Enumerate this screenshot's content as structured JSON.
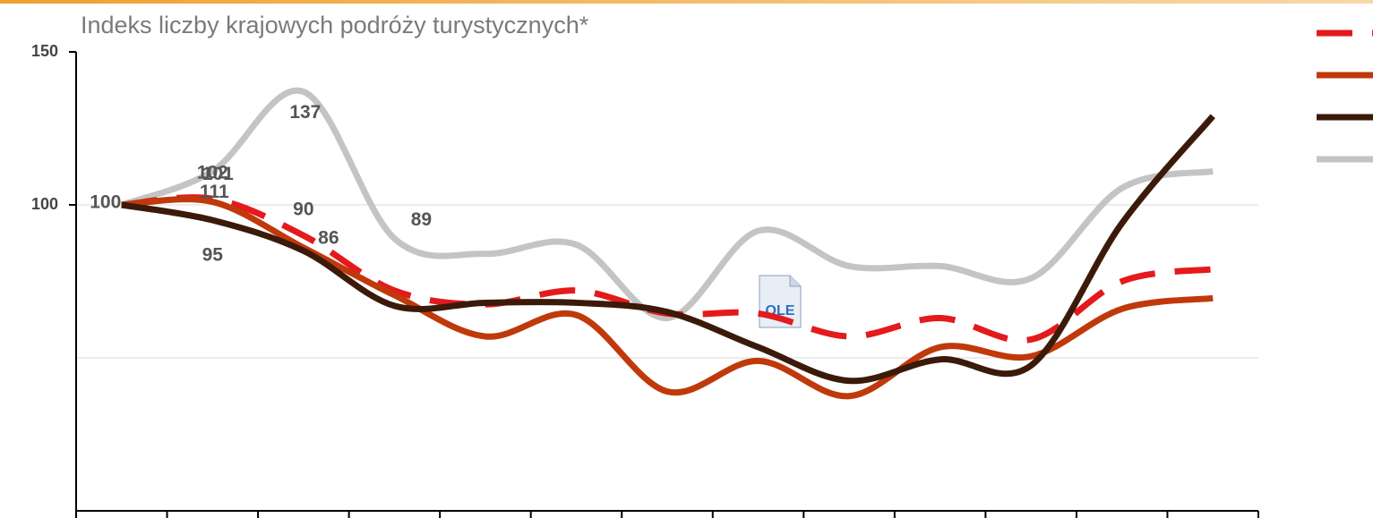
{
  "chart_data": {
    "type": "line",
    "title": "Indeks liczby krajowych podróży turystycznych*",
    "categories": [
      null,
      null,
      null,
      null,
      null,
      null,
      null,
      null,
      null,
      null,
      null,
      null,
      null
    ],
    "ylim": [
      0,
      150
    ],
    "yticks": [
      100,
      150
    ],
    "gridlines": [
      50,
      100
    ],
    "legend": "right",
    "series": [
      {
        "color": "#e41a1c",
        "dashed": true,
        "values": [
          100,
          102,
          90,
          72,
          67.5,
          72,
          64.5,
          64.5,
          57,
          63,
          56,
          75,
          79
        ],
        "value_labels": [
          null,
          "102",
          "90",
          null,
          null,
          null,
          null,
          null,
          null,
          null,
          null,
          null,
          null
        ]
      },
      {
        "color": "#c0390b",
        "values": [
          100,
          101,
          86,
          70.5,
          57,
          64,
          39,
          49,
          37.5,
          53.5,
          50.5,
          66,
          69.5
        ],
        "value_labels": [
          null,
          "101",
          "86",
          null,
          null,
          null,
          null,
          null,
          null,
          null,
          null,
          null,
          null
        ]
      },
      {
        "color": "#3b1a0a",
        "values": [
          100,
          95,
          85,
          67,
          68,
          68,
          65,
          53.5,
          42.5,
          49.5,
          47.5,
          94,
          129
        ],
        "value_labels": [
          null,
          "95",
          null,
          null,
          null,
          null,
          null,
          null,
          null,
          null,
          null,
          null,
          null
        ]
      },
      {
        "color": "#c4c4c4",
        "values": [
          100,
          111,
          137,
          89,
          84,
          87,
          63,
          91.5,
          80,
          80,
          76,
          105.5,
          111
        ],
        "value_labels": [
          "100",
          "111",
          "137",
          "89",
          null,
          null,
          null,
          null,
          null,
          null,
          null,
          null,
          null
        ]
      }
    ]
  }
}
